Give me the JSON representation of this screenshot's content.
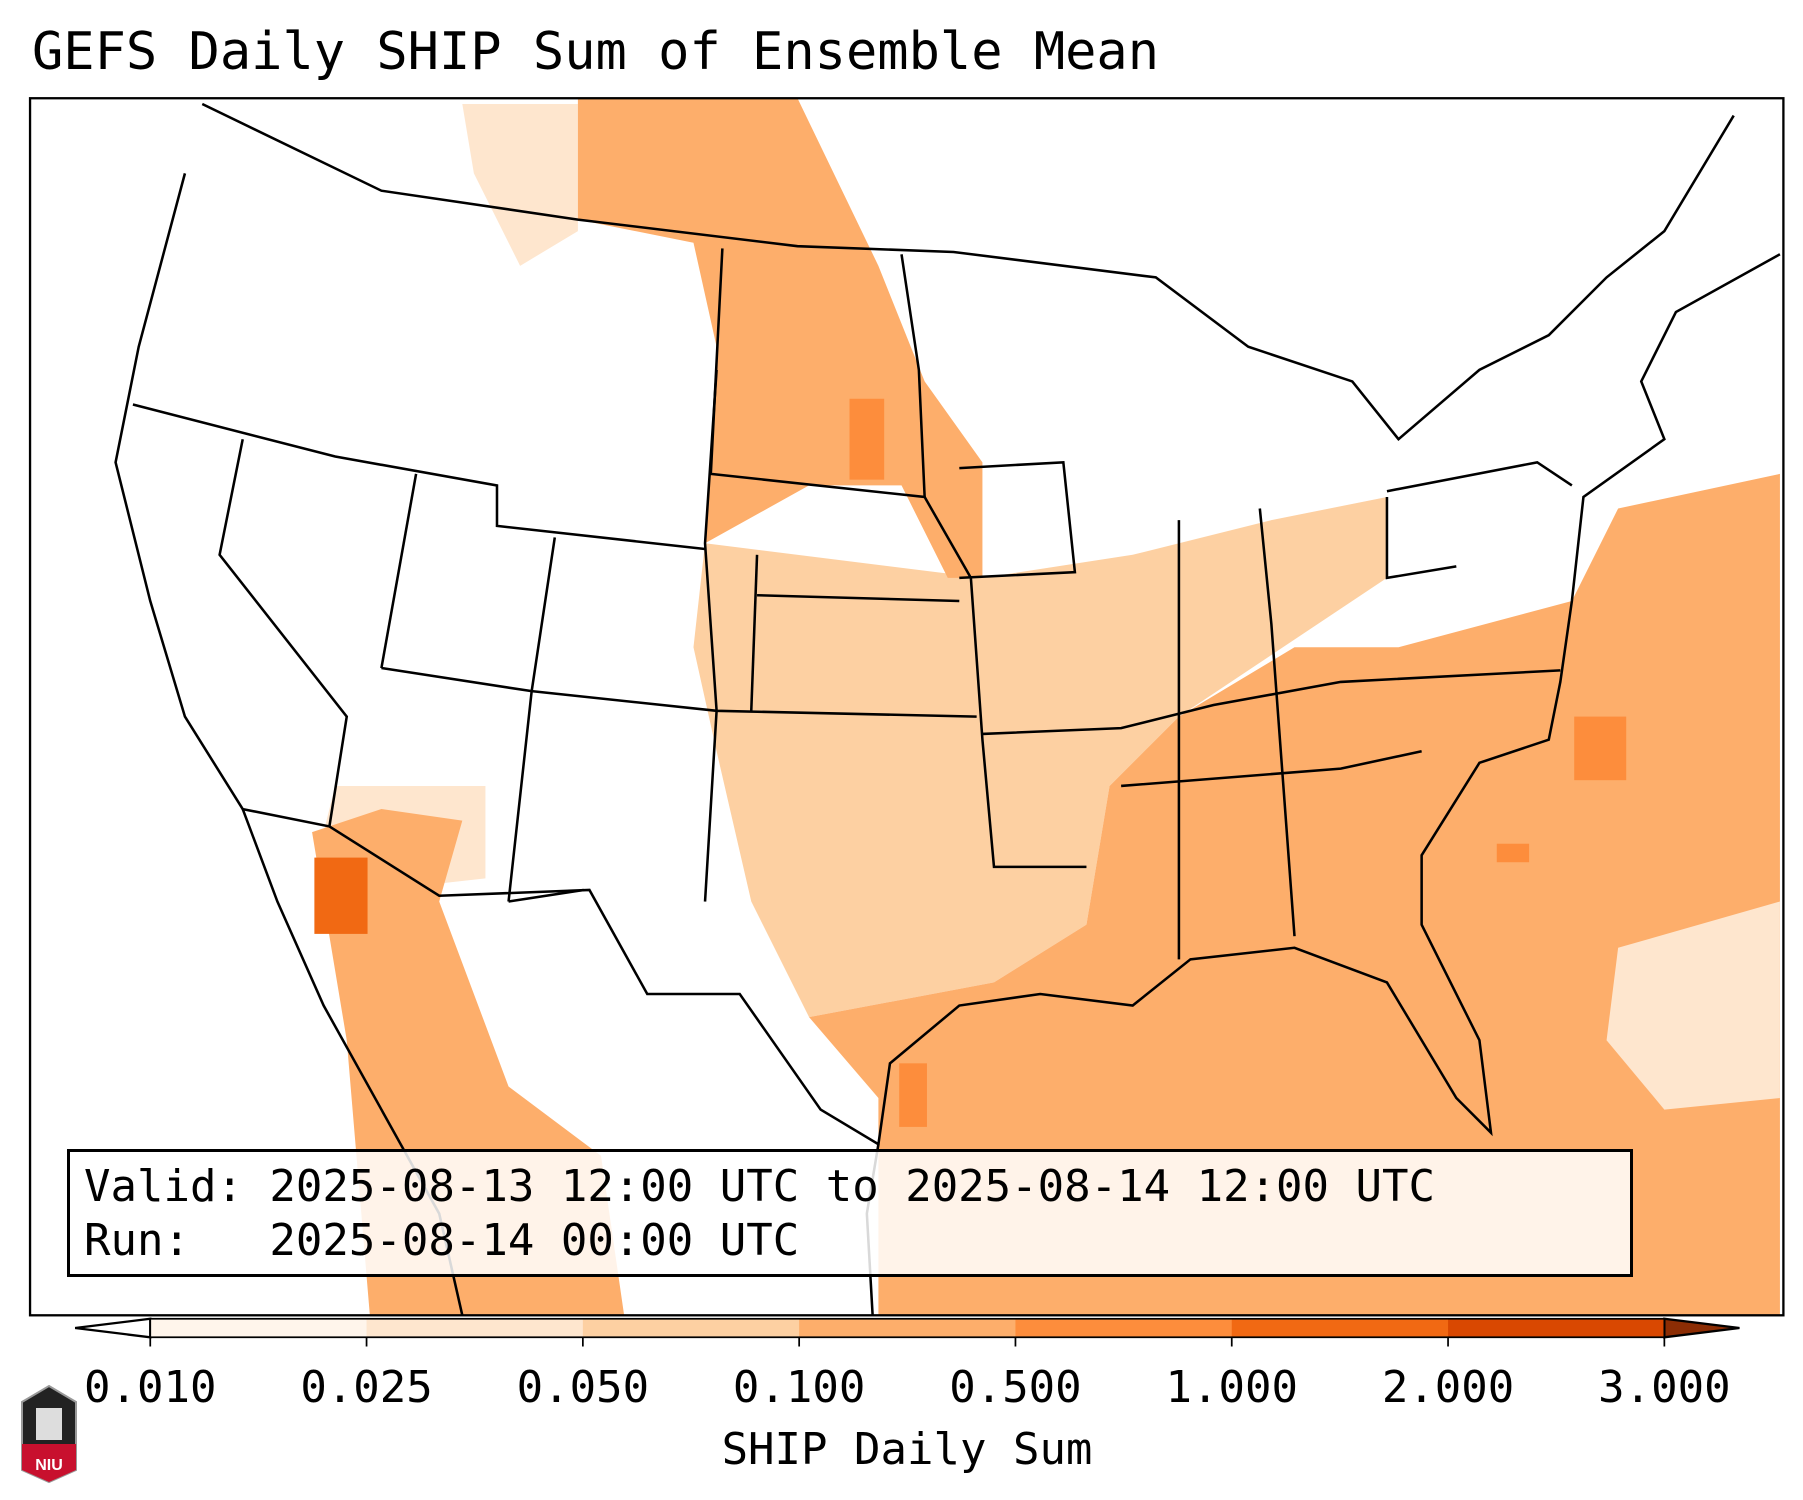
{
  "chart_data": {
    "type": "heatmap",
    "title": "GEFS Daily SHIP Sum of Ensemble Mean",
    "xlabel": "SHIP Daily Sum",
    "colorbar": {
      "ticks": [
        "0.010",
        "0.025",
        "0.050",
        "0.100",
        "0.500",
        "1.000",
        "2.000",
        "3.000"
      ],
      "colors": [
        "#fff5eb",
        "#fee6ce",
        "#fdd0a2",
        "#fdae6b",
        "#fd8d3c",
        "#f16913",
        "#d94801"
      ],
      "under_color": "#ffffff",
      "over_color": "#8c2d04",
      "extend": "both"
    },
    "annotation": {
      "valid_line": "Valid: 2025-08-13 12:00 UTC to 2025-08-14 12:00 UTC",
      "run_line": "Run:   2025-08-14 00:00 UTC"
    },
    "region": "Continental United States",
    "logo_text": "NIU"
  }
}
